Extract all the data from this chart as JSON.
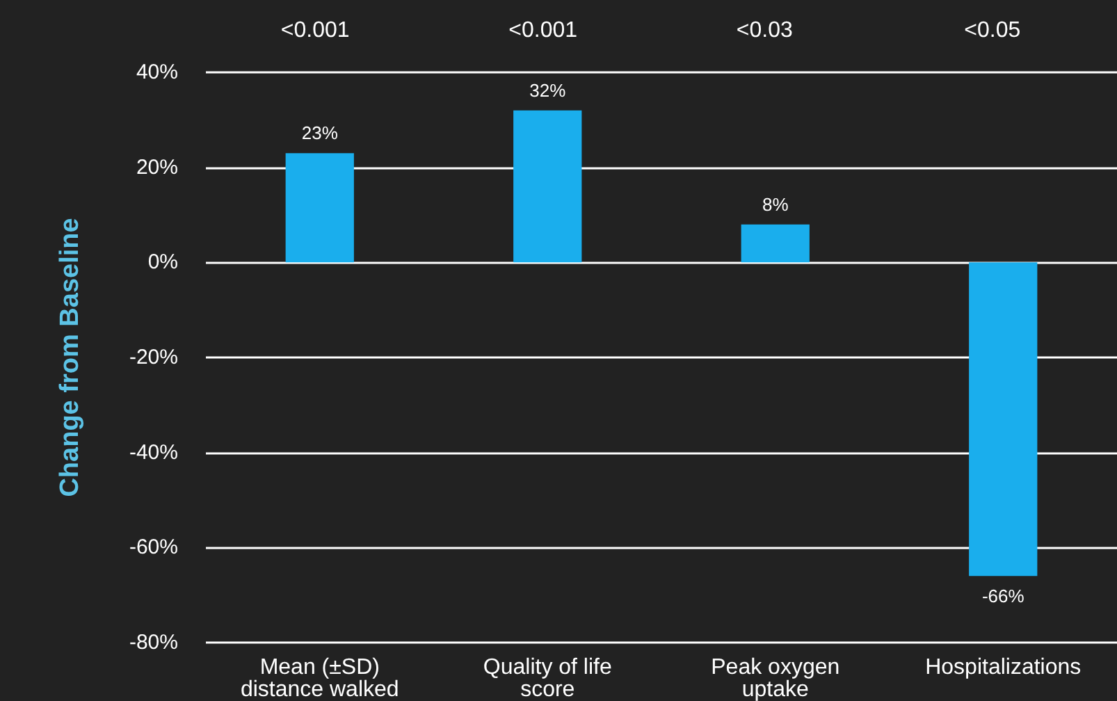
{
  "chart_data": {
    "type": "bar",
    "ylabel": "Change from Baseline",
    "categories": [
      "Mean (±SD)\ndistance walked",
      "Quality of life\nscore",
      "Peak oxygen\nuptake",
      "Hospitalizations"
    ],
    "values": [
      23,
      32,
      8,
      -66
    ],
    "color": "#1aaeed",
    "value_labels": [
      "23%",
      "32%",
      "8%",
      "-66%"
    ],
    "annotations": [
      "<0.001",
      "<0.001",
      "<0.03",
      "<0.05"
    ],
    "ylim": [
      -80,
      40
    ],
    "yticks": [
      {
        "value": -80,
        "label": "-80%"
      },
      {
        "value": -60,
        "label": "-60%"
      },
      {
        "value": -40,
        "label": "-40%"
      },
      {
        "value": -20,
        "label": "-20%"
      },
      {
        "value": 0,
        "label": "0%"
      },
      {
        "value": 20,
        "label": "20%"
      },
      {
        "value": 40,
        "label": "40%"
      }
    ],
    "grid": "y"
  }
}
